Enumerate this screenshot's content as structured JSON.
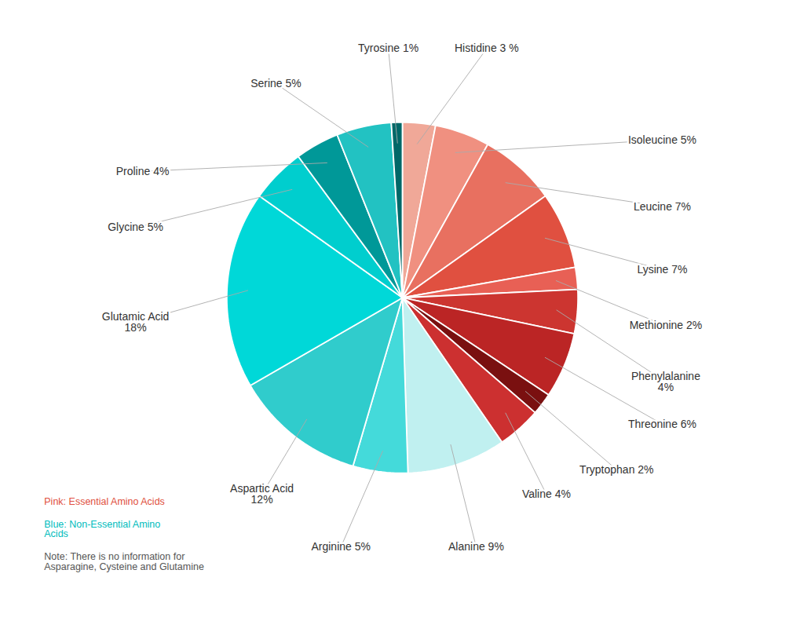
{
  "chart_data": {
    "type": "pie",
    "categories": [
      "Histidine 3 %",
      "Isoleucine 5%",
      "Leucine 7%",
      "Lysine 7%",
      "Methionine 2%",
      "Phenylalanine\n4%",
      "Threonine 6%",
      "Tryptophan 2%",
      "Valine 4%",
      "Alanine 9%",
      "Arginine 5%",
      "Aspartic Acid\n12%",
      "Glutamic Acid\n18%",
      "Glycine 5%",
      "Proline 4%",
      "Serine 5%",
      "Tyrosine 1%"
    ],
    "values": [
      3,
      5,
      7,
      7,
      2,
      4,
      6,
      2,
      4,
      9,
      5,
      12,
      18,
      5,
      4,
      5,
      1
    ],
    "colors": [
      "#F0A898",
      "#F09080",
      "#E87060",
      "#E05040",
      "#E86055",
      "#CC3530",
      "#BB2525",
      "#7A1010",
      "#CC3030",
      "#C0F0F0",
      "#44DADA",
      "#30CCCC",
      "#00D8D8",
      "#00CECE",
      "#009898",
      "#22C2C2",
      "#006868"
    ],
    "annotations": [
      {
        "text": "Pink: Essential Amino Acids",
        "color": "#E05040"
      },
      {
        "text": "Blue: Non-Essential Amino\nAcids",
        "color": "#00BCBC"
      },
      {
        "text": "Note: There is no information for\nAsparagine, Cysteine and Glutamine",
        "color": "#555555"
      }
    ],
    "tick_labels": false
  }
}
